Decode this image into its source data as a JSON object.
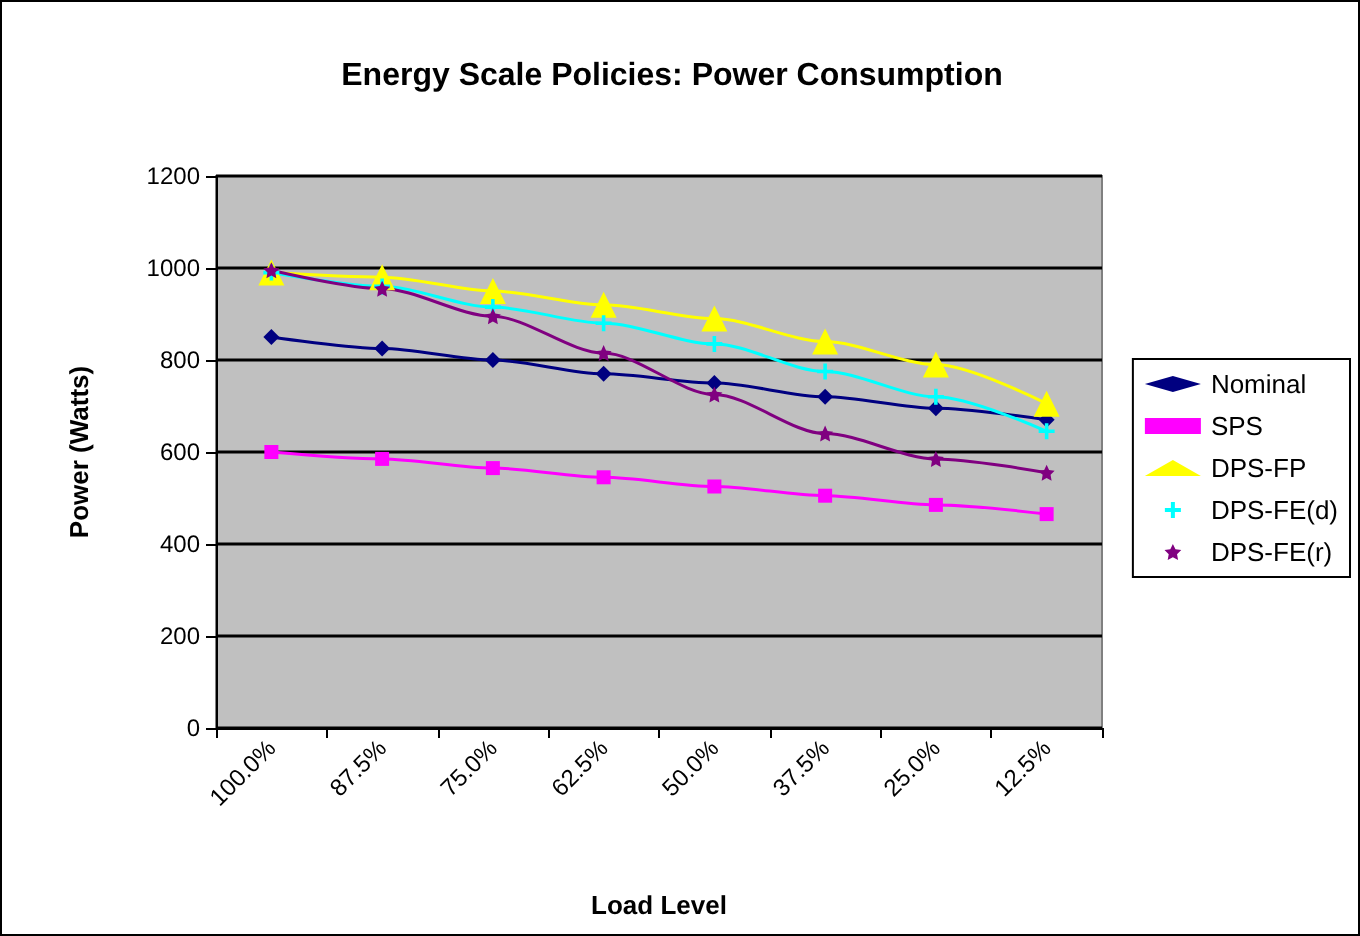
{
  "chart_data": {
    "type": "line",
    "title": "Energy Scale Policies: Power Consumption",
    "xlabel": "Load Level",
    "ylabel": "Power (Watts)",
    "categories": [
      "100.0%",
      "87.5%",
      "75.0%",
      "62.5%",
      "50.0%",
      "37.5%",
      "25.0%",
      "12.5%"
    ],
    "ylim": [
      0,
      1200
    ],
    "yticks": [
      0,
      200,
      400,
      600,
      800,
      1000,
      1200
    ],
    "grid": "y",
    "legend": "right",
    "series": [
      {
        "name": "Nominal",
        "color": "#000080",
        "marker": "diamond",
        "values": [
          850,
          825,
          800,
          770,
          750,
          720,
          695,
          670
        ]
      },
      {
        "name": "SPS",
        "color": "#ff00ff",
        "marker": "square",
        "values": [
          600,
          585,
          565,
          545,
          525,
          505,
          485,
          465
        ]
      },
      {
        "name": "DPS-FP",
        "color": "#ffff00",
        "marker": "triangle",
        "values": [
          990,
          980,
          950,
          920,
          890,
          840,
          790,
          705
        ]
      },
      {
        "name": "DPS-FE(d)",
        "color": "#00ffff",
        "marker": "cross",
        "values": [
          990,
          960,
          915,
          880,
          835,
          775,
          720,
          645
        ]
      },
      {
        "name": "DPS-FE(r)",
        "color": "#800080",
        "marker": "star",
        "values": [
          995,
          955,
          895,
          815,
          725,
          640,
          585,
          555
        ]
      }
    ]
  }
}
